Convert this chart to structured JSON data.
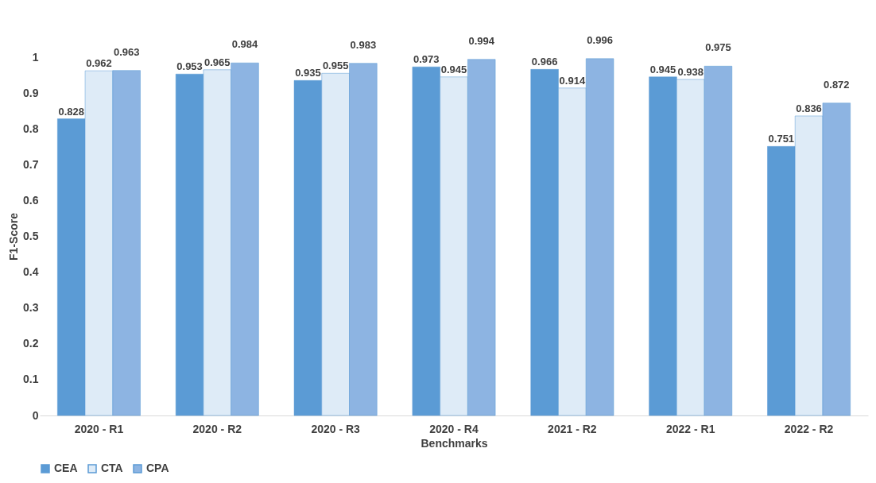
{
  "chart_data": {
    "type": "bar",
    "xlabel": "Benchmarks",
    "ylabel": "F1-Score",
    "categories": [
      "2020 - R1",
      "2020 - R2",
      "2020 - R3",
      "2020 - R4",
      "2021 - R2",
      "2022 - R1",
      "2022 - R2"
    ],
    "series": [
      {
        "name": "CEA",
        "color": "#5b9bd5",
        "values": [
          0.828,
          0.953,
          0.935,
          0.973,
          0.966,
          0.945,
          0.751
        ]
      },
      {
        "name": "CTA",
        "color": "#deebf7",
        "values": [
          0.962,
          0.965,
          0.955,
          0.945,
          0.914,
          0.938,
          0.836
        ]
      },
      {
        "name": "CPA",
        "color": "#8db4e2",
        "values": [
          0.963,
          0.984,
          0.983,
          0.994,
          0.996,
          0.975,
          0.872
        ]
      }
    ],
    "ylim": [
      0,
      1
    ],
    "yticks": [
      0,
      0.1,
      0.2,
      0.3,
      0.4,
      0.5,
      0.6,
      0.7,
      0.8,
      0.9,
      1
    ],
    "grid": false,
    "legend": "bottom",
    "data_labels": true
  }
}
